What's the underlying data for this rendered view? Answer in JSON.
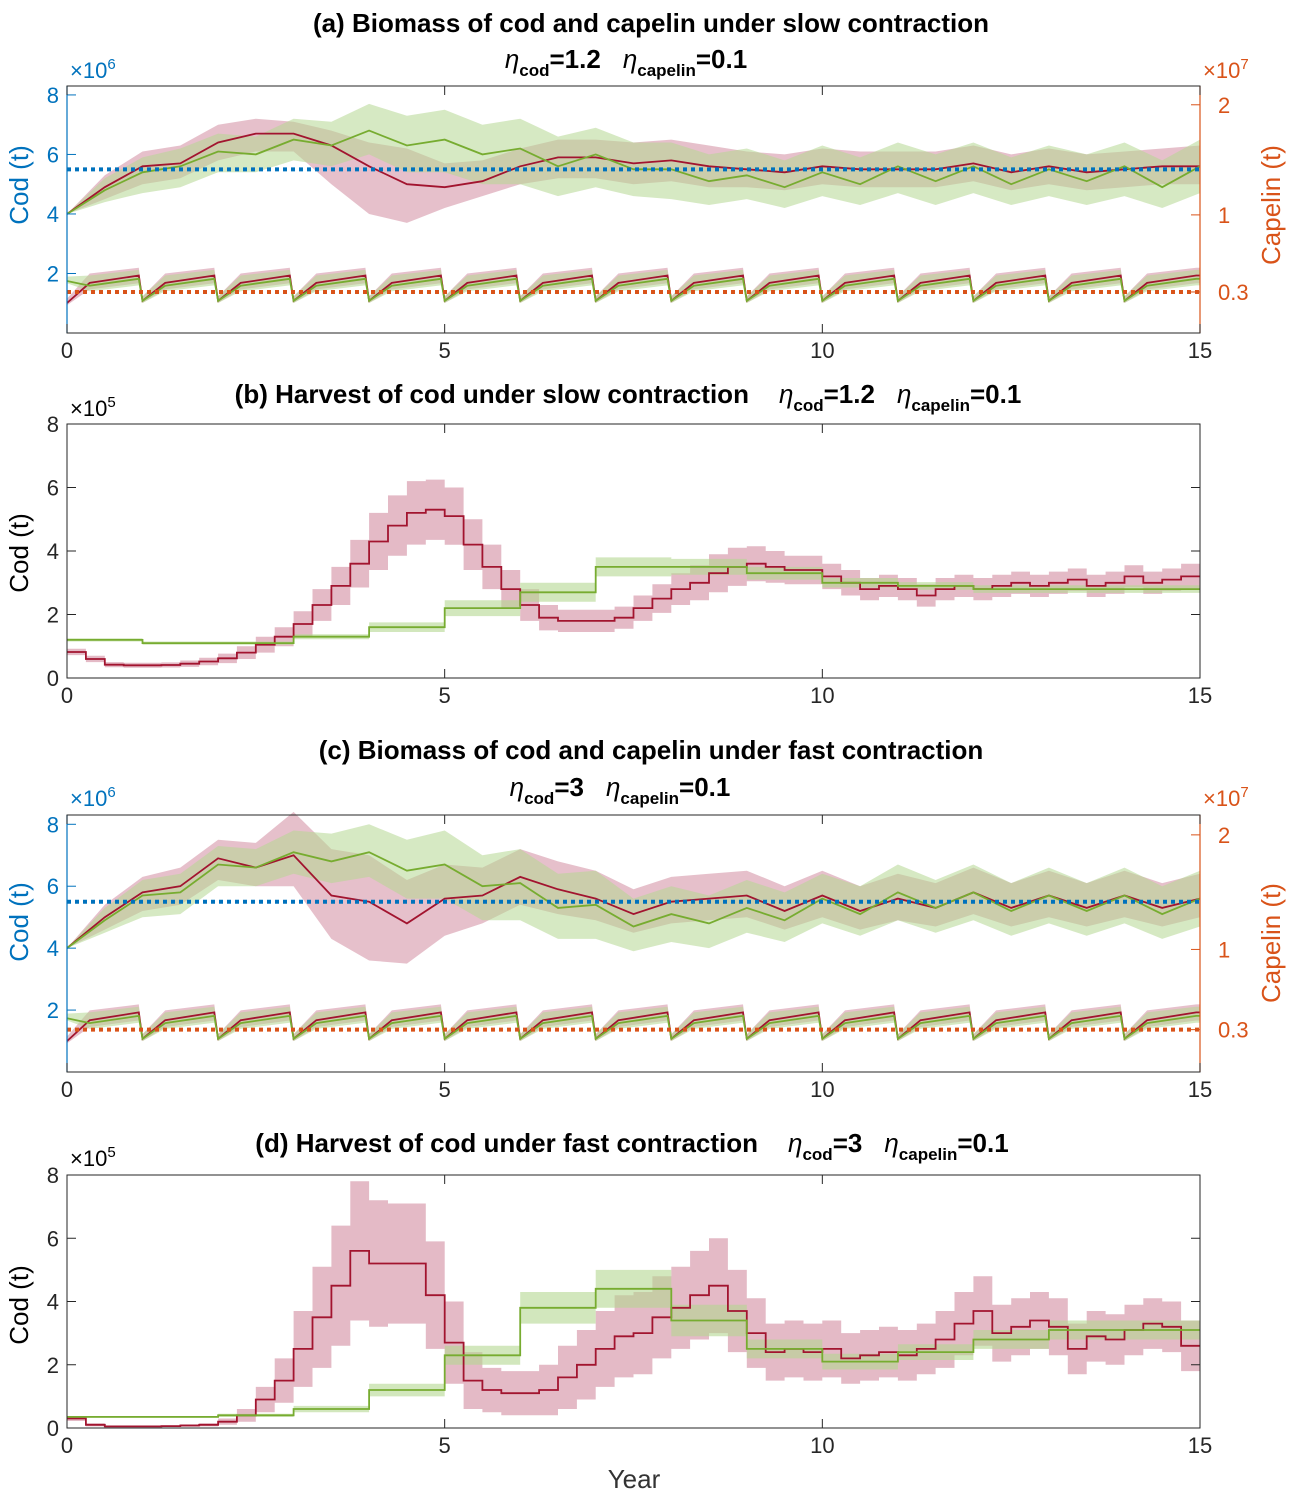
{
  "colors": {
    "cod_axis": "#0072BD",
    "capelin_axis": "#D95319",
    "series_red": "#A2142F",
    "series_green": "#77AC30",
    "band_red": "#D28CA0",
    "band_green": "#B4D791",
    "ref_blue": "#0072BD",
    "ref_orange": "#D95319"
  },
  "xlabel": "Year",
  "chart_data": [
    {
      "id": "a",
      "type": "line",
      "title_line1": "(a) Biomass of cod and capelin under slow contraction",
      "eta_symbol": "η",
      "eta_cod_sub": "cod",
      "eta_cod_val": "=1.2",
      "eta_cap_sub": "capelin",
      "eta_cap_val": "=0.1",
      "xlim": [
        0,
        15
      ],
      "x_ticks": [
        "0",
        "5",
        "10",
        "15"
      ],
      "ylabel_left": "Cod (t)",
      "ylabel_right": "Capelin (t)",
      "left_exponent_base": "×10",
      "left_exponent_pow": "6",
      "right_exponent_base": "×10",
      "right_exponent_pow": "7",
      "ylim_left_millions": [
        0,
        8.3
      ],
      "yticks_left": [
        "2",
        "4",
        "6",
        "8"
      ],
      "yticks_right": [
        "0.3",
        "1",
        "2"
      ],
      "ref_cod_millions": 5.5,
      "ref_capelin_1e7": 0.3,
      "series": [
        {
          "name": "",
          "color": "red",
          "variable": "cod_biomass_millions",
          "x": [
            0,
            0.5,
            1,
            1.5,
            2,
            2.5,
            3,
            3.5,
            4,
            4.5,
            5,
            5.5,
            6,
            6.5,
            7,
            7.5,
            8,
            8.5,
            9,
            9.5,
            10,
            10.5,
            11,
            11.5,
            12,
            12.5,
            13,
            13.5,
            14,
            14.5,
            15
          ],
          "y": [
            4.0,
            4.9,
            5.6,
            5.7,
            6.4,
            6.7,
            6.7,
            6.3,
            5.6,
            5.0,
            4.9,
            5.1,
            5.6,
            5.9,
            5.9,
            5.7,
            5.8,
            5.6,
            5.5,
            5.4,
            5.6,
            5.5,
            5.5,
            5.5,
            5.7,
            5.4,
            5.6,
            5.4,
            5.5,
            5.6,
            5.6
          ],
          "lower": [
            4.0,
            4.5,
            5.0,
            5.2,
            5.8,
            6.1,
            6.1,
            5.0,
            4.0,
            3.7,
            4.2,
            4.6,
            5.0,
            5.2,
            5.2,
            5.0,
            5.1,
            4.9,
            4.9,
            4.8,
            5.0,
            4.9,
            4.9,
            4.9,
            5.1,
            4.8,
            5.0,
            4.8,
            4.9,
            5.0,
            5.0
          ],
          "upper": [
            4.0,
            5.3,
            6.1,
            6.3,
            7.0,
            7.2,
            7.1,
            6.8,
            6.4,
            6.2,
            5.7,
            5.8,
            6.2,
            6.5,
            6.5,
            6.4,
            6.5,
            6.3,
            6.1,
            6.0,
            6.2,
            6.1,
            6.1,
            6.1,
            6.3,
            6.0,
            6.2,
            6.0,
            6.1,
            6.2,
            6.3
          ]
        },
        {
          "name": "",
          "color": "green",
          "variable": "cod_biomass_millions",
          "x": [
            0,
            0.5,
            1,
            1.5,
            2,
            2.5,
            3,
            3.5,
            4,
            4.5,
            5,
            5.5,
            6,
            6.5,
            7,
            7.5,
            8,
            8.5,
            9,
            9.5,
            10,
            10.5,
            11,
            11.5,
            12,
            12.5,
            13,
            13.5,
            14,
            14.5,
            15
          ],
          "y": [
            4.0,
            4.8,
            5.4,
            5.6,
            6.1,
            6.0,
            6.5,
            6.3,
            6.8,
            6.3,
            6.5,
            6.0,
            6.2,
            5.6,
            6.0,
            5.5,
            5.5,
            5.1,
            5.3,
            4.9,
            5.4,
            5.0,
            5.6,
            5.1,
            5.6,
            5.0,
            5.5,
            5.1,
            5.6,
            4.9,
            5.6
          ],
          "lower": [
            4.0,
            4.4,
            4.7,
            4.9,
            5.4,
            5.4,
            5.8,
            5.6,
            6.0,
            5.4,
            5.4,
            5.0,
            5.0,
            4.6,
            4.9,
            4.6,
            4.5,
            4.3,
            4.5,
            4.2,
            4.6,
            4.3,
            4.7,
            4.3,
            4.7,
            4.3,
            4.6,
            4.3,
            4.6,
            4.2,
            4.7
          ],
          "upper": [
            4.0,
            5.2,
            5.9,
            6.2,
            6.7,
            6.6,
            7.2,
            7.1,
            7.7,
            7.3,
            7.5,
            7.0,
            7.2,
            6.6,
            6.9,
            6.4,
            6.4,
            6.0,
            6.2,
            5.8,
            6.3,
            5.9,
            6.4,
            6.0,
            6.4,
            5.9,
            6.3,
            6.0,
            6.4,
            5.8,
            6.5
          ]
        },
        {
          "name": "",
          "color": "red",
          "variable": "capelin_biomass_1e7",
          "sawtooth": true,
          "start": 0.2,
          "peak": 0.45,
          "base": 0.22,
          "lower_peak": 0.38,
          "upper_peak": 0.52
        },
        {
          "name": "",
          "color": "green",
          "variable": "capelin_biomass_1e7",
          "sawtooth": true,
          "start": 0.4,
          "peak": 0.42,
          "base": 0.22,
          "lower_peak": 0.36,
          "upper_peak": 0.5
        }
      ]
    },
    {
      "id": "b",
      "type": "line",
      "title_main": "(b) Harvest of cod under slow contraction",
      "eta_symbol": "η",
      "eta_cod_sub": "cod",
      "eta_cod_val": "=1.2",
      "eta_cap_sub": "capelin",
      "eta_cap_val": "=0.1",
      "xlim": [
        0,
        15
      ],
      "x_ticks": [
        "0",
        "5",
        "10",
        "15"
      ],
      "ylabel": "Cod (t)",
      "exponent_base": "×10",
      "exponent_pow": "5",
      "ylim_1e5": [
        0,
        8
      ],
      "yticks": [
        "0",
        "2",
        "4",
        "6",
        "8"
      ],
      "series": [
        {
          "name": "",
          "color": "red",
          "step_width": 0.25,
          "values": [
            0.82,
            0.6,
            0.42,
            0.4,
            0.4,
            0.41,
            0.45,
            0.52,
            0.62,
            0.8,
            1.05,
            1.3,
            1.7,
            2.3,
            2.9,
            3.6,
            4.3,
            4.8,
            5.2,
            5.3,
            5.1,
            4.2,
            3.5,
            2.8,
            2.3,
            1.9,
            1.8,
            1.8,
            1.8,
            1.9,
            2.2,
            2.5,
            2.8,
            3.0,
            3.3,
            3.5,
            3.6,
            3.5,
            3.4,
            3.4,
            3.2,
            3.0,
            2.8,
            2.9,
            2.8,
            2.6,
            2.8,
            2.9,
            2.8,
            2.9,
            3.0,
            2.9,
            3.0,
            3.1,
            2.9,
            3.0,
            3.2,
            3.0,
            3.1,
            3.2
          ],
          "band_halfwidth": [
            0.1,
            0.1,
            0.08,
            0.08,
            0.08,
            0.08,
            0.1,
            0.12,
            0.15,
            0.2,
            0.25,
            0.3,
            0.4,
            0.5,
            0.6,
            0.75,
            0.9,
            0.95,
            1.0,
            0.95,
            0.9,
            0.8,
            0.7,
            0.6,
            0.5,
            0.4,
            0.35,
            0.35,
            0.35,
            0.35,
            0.4,
            0.45,
            0.5,
            0.55,
            0.6,
            0.6,
            0.55,
            0.5,
            0.45,
            0.45,
            0.4,
            0.4,
            0.35,
            0.35,
            0.35,
            0.35,
            0.35,
            0.35,
            0.35,
            0.35,
            0.35,
            0.35,
            0.35,
            0.35,
            0.35,
            0.35,
            0.35,
            0.35,
            0.35,
            0.4
          ]
        },
        {
          "name": "",
          "color": "green",
          "step_width": 1.0,
          "values": [
            1.2,
            1.1,
            1.1,
            1.3,
            1.6,
            2.2,
            2.7,
            3.5,
            3.5,
            3.3,
            3.0,
            2.9,
            2.8,
            2.8,
            2.8
          ],
          "band_halfwidth": [
            0.05,
            0.05,
            0.05,
            0.08,
            0.15,
            0.25,
            0.3,
            0.3,
            0.25,
            0.2,
            0.15,
            0.12,
            0.12,
            0.12,
            0.12
          ]
        }
      ]
    },
    {
      "id": "c",
      "type": "line",
      "title_line1": "(c) Biomass of cod and capelin under fast contraction",
      "eta_symbol": "η",
      "eta_cod_sub": "cod",
      "eta_cod_val": "=3",
      "eta_cap_sub": "capelin",
      "eta_cap_val": "=0.1",
      "xlim": [
        0,
        15
      ],
      "x_ticks": [
        "0",
        "5",
        "10",
        "15"
      ],
      "ylabel_left": "Cod (t)",
      "ylabel_right": "Capelin (t)",
      "left_exponent_base": "×10",
      "left_exponent_pow": "6",
      "right_exponent_base": "×10",
      "right_exponent_pow": "7",
      "ylim_left_millions": [
        0,
        8.3
      ],
      "yticks_left": [
        "2",
        "4",
        "6",
        "8"
      ],
      "yticks_right": [
        "0.3",
        "1",
        "2"
      ],
      "ref_cod_millions": 5.5,
      "ref_capelin_1e7": 0.3,
      "series": [
        {
          "name": "",
          "color": "red",
          "variable": "cod_biomass_millions",
          "x": [
            0,
            0.5,
            1,
            1.5,
            2,
            2.5,
            3,
            3.5,
            4,
            4.5,
            5,
            5.5,
            6,
            6.5,
            7,
            7.5,
            8,
            8.5,
            9,
            9.5,
            10,
            10.5,
            11,
            11.5,
            12,
            12.5,
            13,
            13.5,
            14,
            14.5,
            15
          ],
          "y": [
            4.0,
            5.0,
            5.8,
            6.0,
            6.9,
            6.6,
            7.0,
            5.7,
            5.5,
            4.8,
            5.6,
            5.7,
            6.3,
            5.9,
            5.6,
            5.1,
            5.5,
            5.6,
            5.7,
            5.2,
            5.7,
            5.2,
            5.6,
            5.3,
            5.8,
            5.3,
            5.7,
            5.3,
            5.7,
            5.3,
            5.6
          ],
          "lower": [
            4.0,
            4.6,
            5.2,
            5.4,
            6.2,
            6.0,
            6.0,
            4.3,
            3.6,
            3.5,
            4.4,
            4.8,
            5.4,
            5.1,
            4.9,
            4.5,
            4.8,
            4.9,
            5.0,
            4.6,
            5.0,
            4.6,
            4.9,
            4.7,
            5.1,
            4.7,
            5.0,
            4.7,
            5.0,
            4.7,
            5.0
          ],
          "upper": [
            4.0,
            5.4,
            6.3,
            6.6,
            7.5,
            7.4,
            8.4,
            7.2,
            7.0,
            6.2,
            6.7,
            6.6,
            7.2,
            6.8,
            6.5,
            5.9,
            6.3,
            6.4,
            6.5,
            6.0,
            6.5,
            6.0,
            6.4,
            6.1,
            6.6,
            6.1,
            6.5,
            6.1,
            6.5,
            6.1,
            6.4
          ]
        },
        {
          "name": "",
          "color": "green",
          "variable": "cod_biomass_millions",
          "x": [
            0,
            0.5,
            1,
            1.5,
            2,
            2.5,
            3,
            3.5,
            4,
            4.5,
            5,
            5.5,
            6,
            6.5,
            7,
            7.5,
            8,
            8.5,
            9,
            9.5,
            10,
            10.5,
            11,
            11.5,
            12,
            12.5,
            13,
            13.5,
            14,
            14.5,
            15
          ],
          "y": [
            4.0,
            4.9,
            5.7,
            5.8,
            6.7,
            6.6,
            7.1,
            6.8,
            7.1,
            6.5,
            6.7,
            6.0,
            6.1,
            5.3,
            5.4,
            4.7,
            5.1,
            4.8,
            5.3,
            4.9,
            5.6,
            5.1,
            5.8,
            5.3,
            5.8,
            5.2,
            5.7,
            5.2,
            5.7,
            5.1,
            5.6
          ],
          "lower": [
            4.0,
            4.5,
            5.0,
            5.1,
            6.0,
            6.0,
            6.4,
            6.1,
            6.3,
            5.6,
            5.6,
            4.9,
            4.9,
            4.3,
            4.3,
            3.9,
            4.2,
            4.0,
            4.5,
            4.2,
            4.8,
            4.4,
            4.9,
            4.5,
            4.9,
            4.4,
            4.8,
            4.4,
            4.8,
            4.3,
            4.7
          ],
          "upper": [
            4.0,
            5.3,
            6.2,
            6.4,
            7.3,
            7.2,
            7.8,
            7.7,
            8.0,
            7.5,
            7.8,
            7.0,
            7.2,
            6.4,
            6.5,
            5.6,
            6.0,
            5.7,
            6.2,
            5.8,
            6.4,
            6.0,
            6.7,
            6.2,
            6.7,
            6.1,
            6.6,
            6.1,
            6.6,
            6.0,
            6.5
          ]
        },
        {
          "name": "",
          "color": "red",
          "variable": "capelin_biomass_1e7",
          "sawtooth": true,
          "start": 0.2,
          "peak": 0.45,
          "base": 0.22,
          "lower_peak": 0.38,
          "upper_peak": 0.52
        },
        {
          "name": "",
          "color": "green",
          "variable": "capelin_biomass_1e7",
          "sawtooth": true,
          "start": 0.4,
          "peak": 0.42,
          "base": 0.22,
          "lower_peak": 0.36,
          "upper_peak": 0.5
        }
      ]
    },
    {
      "id": "d",
      "type": "line",
      "title_main": "(d) Harvest of cod under fast contraction",
      "eta_symbol": "η",
      "eta_cod_sub": "cod",
      "eta_cod_val": "=3",
      "eta_cap_sub": "capelin",
      "eta_cap_val": "=0.1",
      "xlim": [
        0,
        15
      ],
      "x_ticks": [
        "0",
        "5",
        "10",
        "15"
      ],
      "ylabel": "Cod (t)",
      "exponent_base": "×10",
      "exponent_pow": "5",
      "ylim_1e5": [
        0,
        8
      ],
      "yticks": [
        "0",
        "2",
        "4",
        "6",
        "8"
      ],
      "series": [
        {
          "name": "",
          "color": "red",
          "step_width": 0.25,
          "values": [
            0.3,
            0.1,
            0.05,
            0.05,
            0.05,
            0.06,
            0.08,
            0.1,
            0.2,
            0.4,
            0.9,
            1.5,
            2.5,
            3.5,
            4.5,
            5.6,
            5.2,
            5.2,
            5.2,
            4.2,
            2.7,
            1.5,
            1.2,
            1.1,
            1.1,
            1.2,
            1.6,
            2.0,
            2.5,
            2.9,
            3.0,
            3.5,
            3.8,
            4.2,
            4.5,
            3.7,
            3.0,
            2.4,
            2.5,
            2.4,
            2.5,
            2.2,
            2.3,
            2.4,
            2.3,
            2.5,
            2.8,
            3.3,
            3.7,
            3.0,
            3.2,
            3.4,
            3.2,
            2.5,
            2.9,
            2.8,
            3.1,
            3.3,
            3.2,
            2.6
          ],
          "band_halfwidth": [
            0.08,
            0.05,
            0.03,
            0.03,
            0.03,
            0.03,
            0.04,
            0.05,
            0.1,
            0.2,
            0.4,
            0.7,
            1.2,
            1.6,
            1.9,
            2.2,
            2.0,
            1.9,
            1.9,
            1.7,
            1.3,
            0.9,
            0.7,
            0.7,
            0.7,
            0.8,
            1.0,
            1.1,
            1.2,
            1.3,
            1.3,
            1.3,
            1.3,
            1.4,
            1.5,
            1.3,
            1.1,
            0.9,
            0.9,
            0.9,
            0.9,
            0.8,
            0.8,
            0.8,
            0.8,
            0.8,
            0.9,
            1.0,
            1.1,
            0.9,
            0.9,
            0.9,
            0.9,
            0.8,
            0.8,
            0.8,
            0.8,
            0.8,
            0.8,
            0.8
          ]
        },
        {
          "name": "",
          "color": "green",
          "step_width": 1.0,
          "values": [
            0.35,
            0.35,
            0.4,
            0.6,
            1.2,
            2.3,
            3.8,
            4.4,
            3.4,
            2.5,
            2.1,
            2.4,
            2.8,
            3.1,
            3.1
          ],
          "band_halfwidth": [
            0.03,
            0.03,
            0.05,
            0.1,
            0.2,
            0.3,
            0.5,
            0.6,
            0.5,
            0.3,
            0.25,
            0.25,
            0.3,
            0.3,
            0.3
          ]
        }
      ]
    }
  ]
}
